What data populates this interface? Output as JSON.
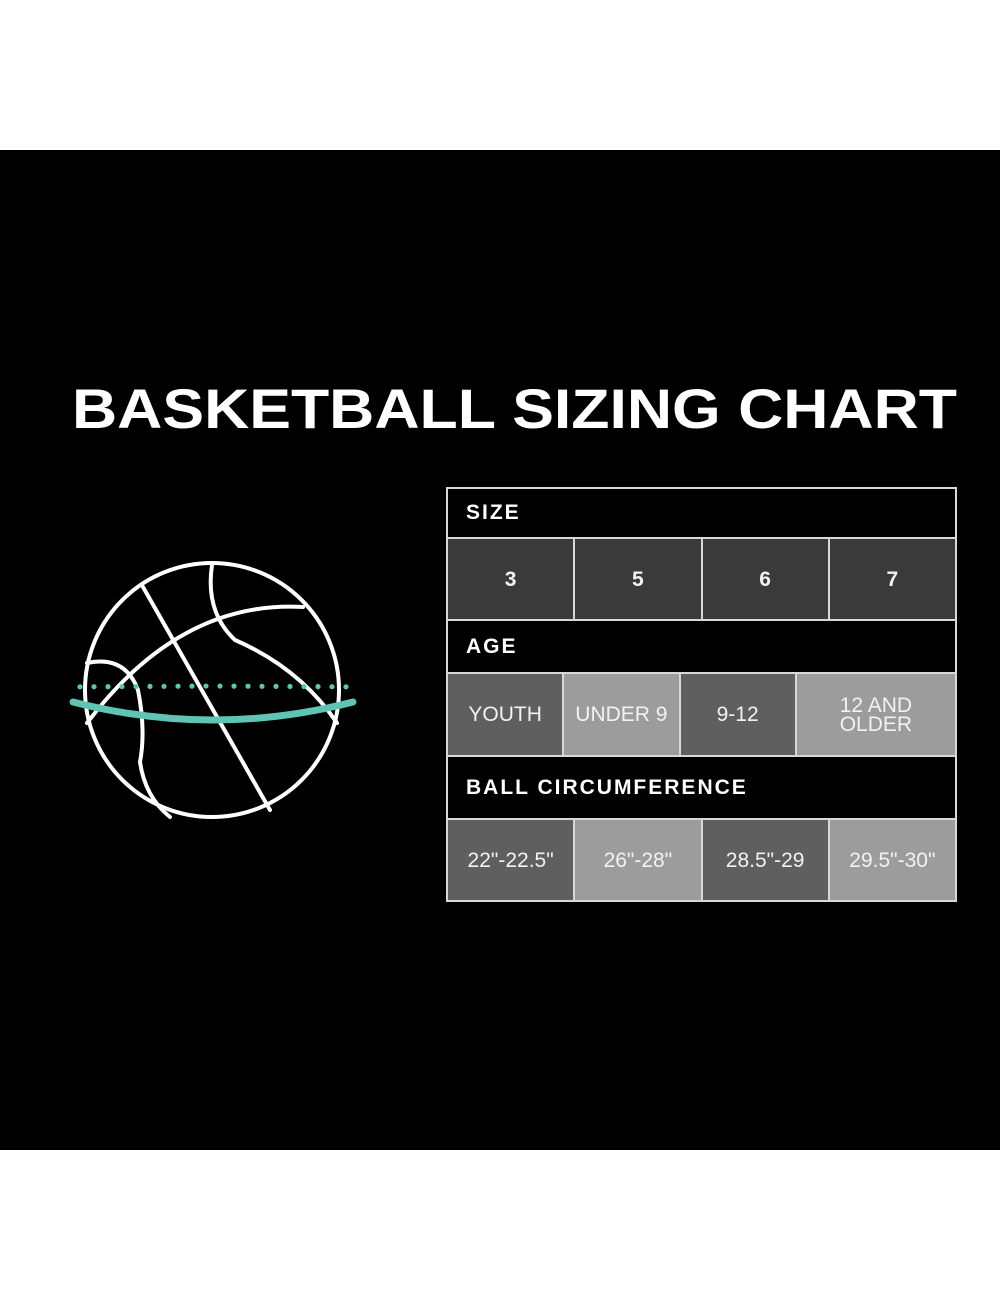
{
  "title": "BASKETBALL SIZING CHART",
  "colors": {
    "background": "#000000",
    "accent_teal": "#5fc4b4",
    "header_bg": "#000000",
    "size_cell": "#3a3a3a",
    "dark_cell": "#5f5f5f",
    "light_cell": "#9c9c9c"
  },
  "illustration": "basketball-icon",
  "table": {
    "size": {
      "header": "SIZE",
      "values": [
        "3",
        "5",
        "6",
        "7"
      ]
    },
    "age": {
      "header": "AGE",
      "values": [
        "YOUTH",
        "UNDER 9",
        "9-12",
        "12 AND OLDER"
      ]
    },
    "circumference": {
      "header": "BALL CIRCUMFERENCE",
      "values": [
        "22\"-22.5\"",
        "26\"-28\"",
        "28.5\"-29",
        "29.5\"-30\""
      ]
    }
  }
}
